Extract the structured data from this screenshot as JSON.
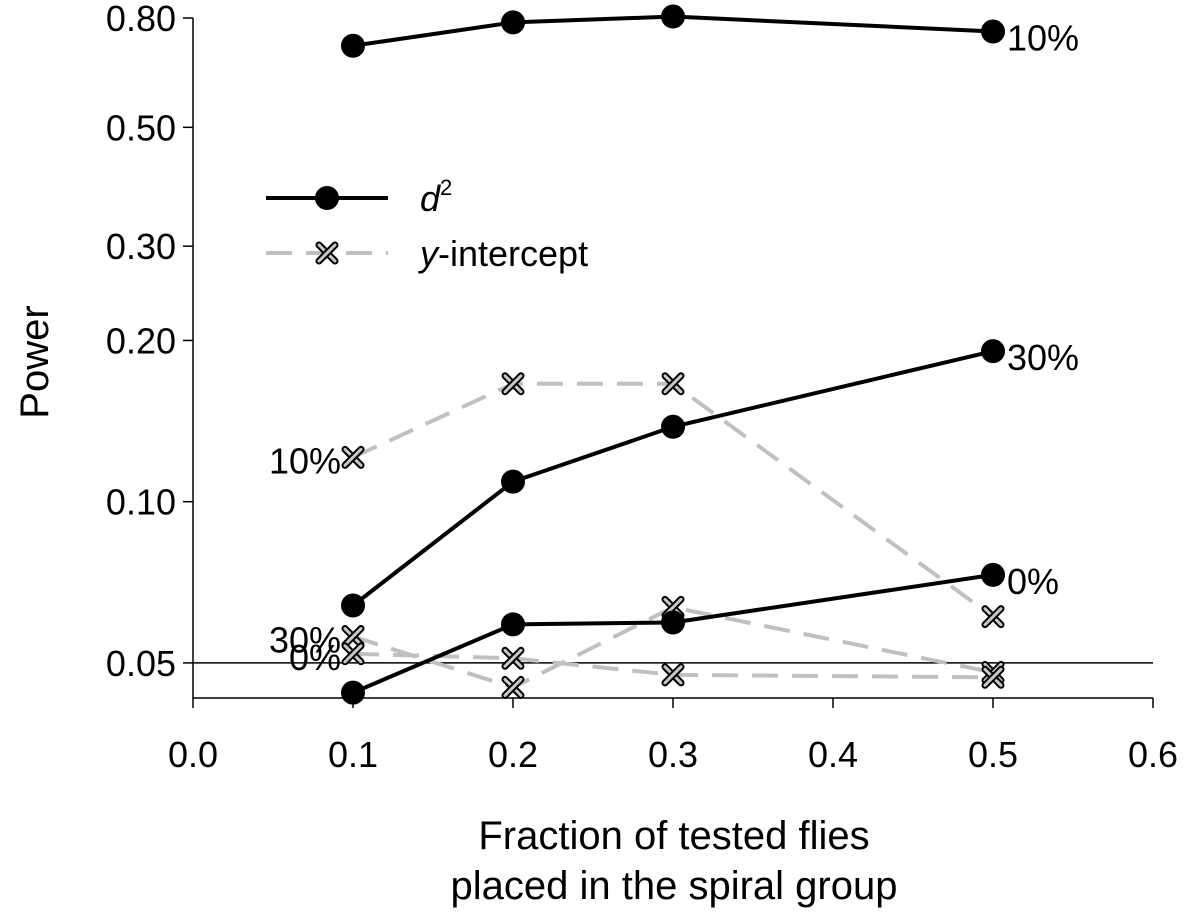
{
  "chart_data": {
    "type": "line",
    "title": "",
    "xlabel_lines": [
      "Fraction of tested flies",
      "placed in the spiral group"
    ],
    "ylabel": "Power",
    "y_scale": "log",
    "xlim": [
      0.0,
      0.6
    ],
    "ylim": [
      0.043,
      0.8
    ],
    "x_ticks": [
      0.0,
      0.1,
      0.2,
      0.3,
      0.4,
      0.5,
      0.6
    ],
    "x_tick_labels": [
      "0.0",
      "0.1",
      "0.2",
      "0.3",
      "0.4",
      "0.5",
      "0.6"
    ],
    "y_ticks": [
      0.05,
      0.1,
      0.2,
      0.3,
      0.5,
      0.8
    ],
    "y_tick_labels": [
      "0.05",
      "0.10",
      "0.20",
      "0.30",
      "0.50",
      "0.80"
    ],
    "reference_line": {
      "y": 0.05
    },
    "grid": false,
    "legend": {
      "placement": "upper-left",
      "entries": [
        {
          "key": "d2",
          "label_main": "d",
          "label_sup": "2",
          "label_rest": ""
        },
        {
          "key": "yint",
          "label_main": "y",
          "label_sup": "",
          "label_rest": "-intercept"
        }
      ]
    },
    "styles": {
      "d2": {
        "color": "#000000",
        "marker": "circle",
        "dash": "solid"
      },
      "yint": {
        "color": "#c0c0c0",
        "marker": "x",
        "dash": "dashed"
      }
    },
    "series": [
      {
        "group": "d2",
        "label": "10%",
        "label_side": "right",
        "x": [
          0.1,
          0.2,
          0.3,
          0.5
        ],
        "y": [
          0.71,
          0.785,
          0.805,
          0.755
        ]
      },
      {
        "group": "d2",
        "label": "30%",
        "label_side": "right",
        "x": [
          0.1,
          0.2,
          0.3,
          0.5
        ],
        "y": [
          0.064,
          0.109,
          0.138,
          0.191
        ]
      },
      {
        "group": "d2",
        "label": "0%",
        "label_side": "right",
        "x": [
          0.1,
          0.2,
          0.3,
          0.5
        ],
        "y": [
          0.044,
          0.059,
          0.0595,
          0.073
        ]
      },
      {
        "group": "yint",
        "label": "10%",
        "label_side": "left",
        "x": [
          0.1,
          0.2,
          0.3,
          0.5
        ],
        "y": [
          0.121,
          0.166,
          0.166,
          0.061
        ]
      },
      {
        "group": "yint",
        "label": "30%",
        "label_side": "left",
        "x": [
          0.1,
          0.2,
          0.3,
          0.5
        ],
        "y": [
          0.056,
          0.045,
          0.0635,
          0.048
        ]
      },
      {
        "group": "yint",
        "label": "0%",
        "label_side": "left",
        "x": [
          0.1,
          0.2,
          0.3,
          0.5
        ],
        "y": [
          0.052,
          0.051,
          0.0475,
          0.047
        ]
      }
    ]
  }
}
